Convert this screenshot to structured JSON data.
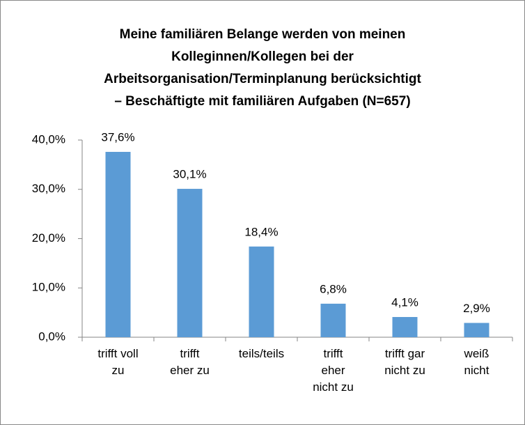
{
  "chart_data": {
    "type": "bar",
    "title": "Meine familiären Belange werden von meinen\nKolleginnen/Kollegen bei der\nArbeitsorganisation/Terminplanung berücksichtigt\n– Beschäftigte mit familiären Aufgaben (N=657)",
    "categories": [
      "trifft voll\nzu",
      "trifft\neher zu",
      "teils/teils",
      "trifft\neher\nnicht zu",
      "trifft gar\nnicht zu",
      "weiß\nnicht"
    ],
    "values": [
      37.6,
      30.1,
      18.4,
      6.8,
      4.1,
      2.9
    ],
    "value_labels": [
      "37,6%",
      "30,1%",
      "18,4%",
      "6,8%",
      "4,1%",
      "2,9%"
    ],
    "color": "#5b9bd5",
    "ylim": [
      0,
      40
    ],
    "yticks": [
      {
        "value": 0,
        "label": "0,0%"
      },
      {
        "value": 10,
        "label": "10,0%"
      },
      {
        "value": 20,
        "label": "20,0%"
      },
      {
        "value": 30,
        "label": "30,0%"
      },
      {
        "value": 40,
        "label": "40,0%"
      }
    ],
    "grid": false
  }
}
